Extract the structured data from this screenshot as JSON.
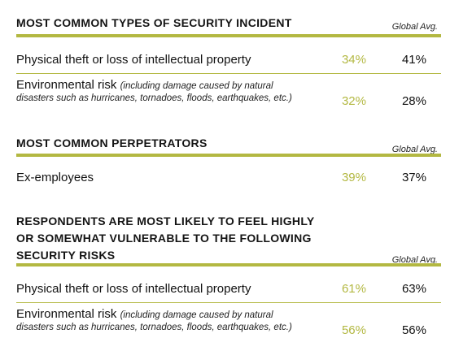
{
  "columns": {
    "global_avg_label": "Global Avg."
  },
  "section1": {
    "title": "MOST COMMON TYPES OF SECURITY INCIDENT",
    "rows": [
      {
        "label": "Physical theft or loss of intellectual property",
        "note": "",
        "note2": "",
        "region": "34%",
        "global": "41%"
      },
      {
        "label": "Environmental risk",
        "note": "(including damage caused by natural",
        "note2": "disasters such as hurricanes, tornadoes, floods, earthquakes, etc.)",
        "region": "32%",
        "global": "28%"
      }
    ]
  },
  "section2": {
    "title": "MOST COMMON PERPETRATORS",
    "rows": [
      {
        "label": "Ex-employees",
        "region": "39%",
        "global": "37%"
      }
    ]
  },
  "section3": {
    "title_line1": "RESPONDENTS ARE MOST LIKELY TO FEEL HIGHLY",
    "title_line2": "OR SOMEWHAT VULNERABLE TO THE FOLLOWING",
    "title_line3": "SECURITY RISKS",
    "rows": [
      {
        "label": "Physical theft or loss of intellectual property",
        "region": "61%",
        "global": "63%"
      },
      {
        "label": "Environmental risk",
        "note": "(including damage caused by natural",
        "note2": "disasters such as hurricanes, tornadoes, floods, earthquakes, etc.)",
        "region": "56%",
        "global": "56%"
      }
    ]
  },
  "colors": {
    "accent": "#b3b842",
    "text": "#141414"
  }
}
